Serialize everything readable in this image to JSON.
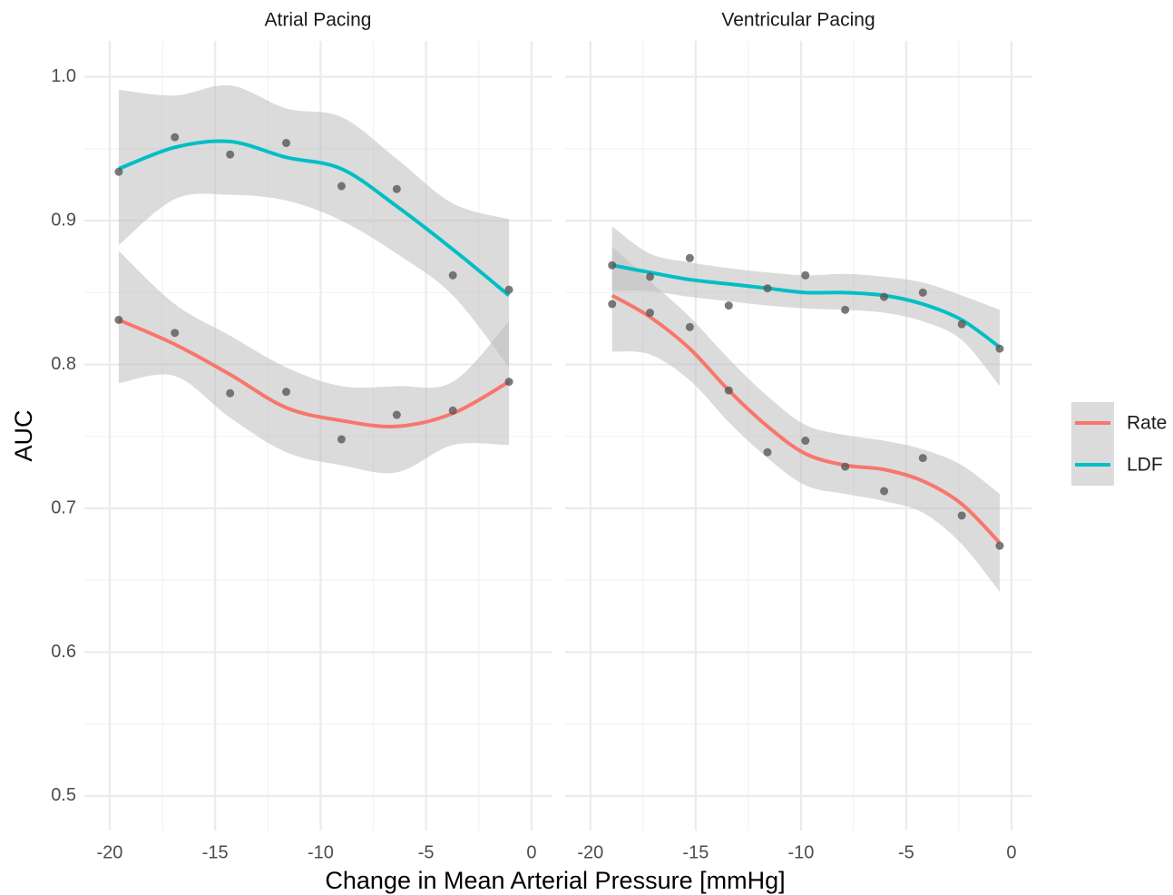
{
  "chart_data": {
    "type": "line",
    "xlabel": "Change in Mean Arterial Pressure [mmHg]",
    "ylabel": "AUC",
    "xlim": [
      -21.2,
      0.95
    ],
    "ylim": [
      0.476,
      1.025
    ],
    "xticks": [
      -20,
      -15,
      -10,
      -5,
      0
    ],
    "yticks": [
      0.5,
      0.6,
      0.7,
      0.8,
      0.9,
      {
        "value": 1,
        "label": "1.0"
      }
    ],
    "minor_xticks": [
      -17.5,
      -12.5,
      -7.5,
      -2.5
    ],
    "minor_yticks": [
      0.55,
      0.65,
      0.75,
      0.85,
      0.95
    ],
    "grid": true,
    "legend": "right",
    "point_color": "#595959",
    "band_color": "#bdbdbd",
    "series": [
      {
        "name": "Rate",
        "color": "#f8766d"
      },
      {
        "name": "LDF",
        "color": "#00bfc4"
      }
    ],
    "facets": [
      {
        "title": "Atrial Pacing",
        "x": [
          -19.57,
          -16.91,
          -14.29,
          -11.63,
          -9.01,
          -6.39,
          -3.73,
          -1.07
        ],
        "series": [
          {
            "values": [
              0.831,
              0.822,
              0.78,
              0.781,
              0.748,
              0.765,
              0.768,
              0.788
            ],
            "fit": [
              0.831,
              0.814,
              0.793,
              0.77,
              0.761,
              0.757,
              0.766,
              0.788
            ],
            "lower": [
              0.787,
              0.792,
              0.763,
              0.739,
              0.73,
              0.725,
              0.744,
              0.744
            ],
            "upper": [
              0.879,
              0.842,
              0.82,
              0.798,
              0.785,
              0.785,
              0.788,
              0.83
            ]
          },
          {
            "values": [
              0.934,
              0.958,
              0.946,
              0.954,
              0.924,
              0.922,
              0.862,
              0.852
            ],
            "fit": [
              0.936,
              0.951,
              0.955,
              0.944,
              0.936,
              0.91,
              0.88,
              0.848
            ],
            "lower": [
              0.883,
              0.915,
              0.918,
              0.914,
              0.9,
              0.877,
              0.848,
              0.798
            ],
            "upper": [
              0.991,
              0.987,
              0.994,
              0.978,
              0.972,
              0.943,
              0.912,
              0.901
            ]
          }
        ]
      },
      {
        "title": "Ventricular Pacing",
        "x": [
          -18.97,
          -17.17,
          -15.28,
          -13.43,
          -11.59,
          -9.79,
          -7.9,
          -6.05,
          -4.21,
          -2.36,
          -0.56
        ],
        "series": [
          {
            "values": [
              0.842,
              0.836,
              0.826,
              0.782,
              0.739,
              0.747,
              0.729,
              0.712,
              0.735,
              0.695,
              0.674
            ],
            "fit": [
              0.848,
              0.833,
              0.811,
              0.782,
              0.757,
              0.738,
              0.73,
              0.727,
              0.719,
              0.703,
              0.676
            ],
            "lower": [
              0.809,
              0.807,
              0.789,
              0.76,
              0.735,
              0.716,
              0.71,
              0.705,
              0.697,
              0.675,
              0.642
            ],
            "upper": [
              0.882,
              0.858,
              0.833,
              0.804,
              0.778,
              0.758,
              0.751,
              0.747,
              0.741,
              0.73,
              0.71
            ]
          },
          {
            "values": [
              0.869,
              0.861,
              0.874,
              0.841,
              0.853,
              0.862,
              0.838,
              0.847,
              0.85,
              0.828,
              0.811
            ],
            "fit": [
              0.869,
              0.864,
              0.859,
              0.856,
              0.853,
              0.85,
              0.85,
              0.848,
              0.842,
              0.831,
              0.812
            ],
            "lower": [
              0.851,
              0.851,
              0.847,
              0.844,
              0.841,
              0.839,
              0.838,
              0.836,
              0.83,
              0.817,
              0.785
            ],
            "upper": [
              0.896,
              0.877,
              0.871,
              0.867,
              0.864,
              0.862,
              0.863,
              0.861,
              0.857,
              0.848,
              0.838
            ]
          }
        ]
      }
    ]
  }
}
